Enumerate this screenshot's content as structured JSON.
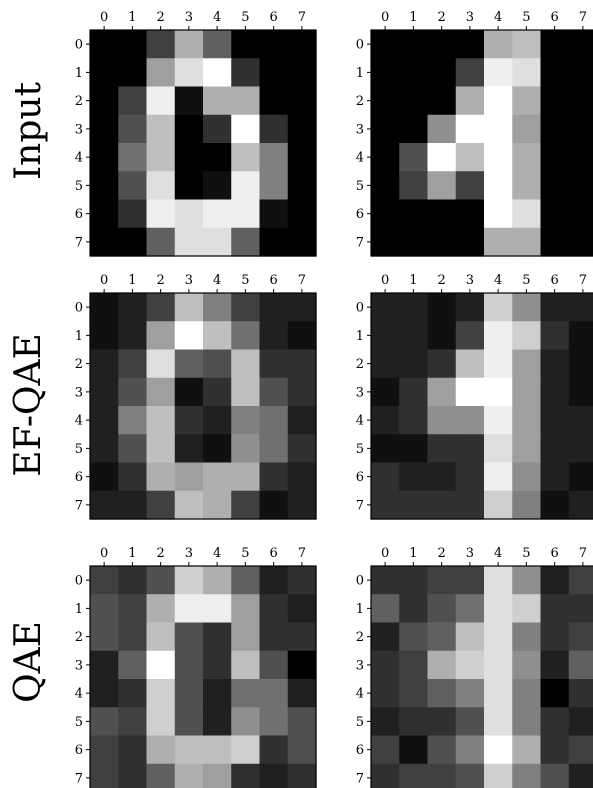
{
  "chart_data": {
    "type": "heatmap",
    "colormap": "grayscale",
    "value_range": [
      0,
      16
    ],
    "tick_labels": [
      "0",
      "1",
      "2",
      "3",
      "4",
      "5",
      "6",
      "7"
    ],
    "row_labels": [
      "Input",
      "EF-QAE",
      "QAE"
    ],
    "panels": [
      {
        "row": "Input",
        "column": 0,
        "values": [
          [
            0,
            0,
            4,
            11,
            6,
            0,
            0,
            0
          ],
          [
            0,
            0,
            10,
            14,
            16,
            3,
            0,
            0
          ],
          [
            0,
            4,
            15,
            1,
            11,
            11,
            0,
            0
          ],
          [
            0,
            5,
            12,
            0,
            3,
            16,
            3,
            0
          ],
          [
            0,
            7,
            12,
            0,
            0,
            12,
            8,
            0
          ],
          [
            0,
            5,
            14,
            0,
            1,
            15,
            8,
            0
          ],
          [
            0,
            3,
            15,
            14,
            15,
            15,
            1,
            0
          ],
          [
            0,
            0,
            6,
            14,
            14,
            6,
            0,
            0
          ]
        ]
      },
      {
        "row": "Input",
        "column": 1,
        "values": [
          [
            0,
            0,
            0,
            0,
            11,
            12,
            0,
            0
          ],
          [
            0,
            0,
            0,
            4,
            15,
            14,
            0,
            0
          ],
          [
            0,
            0,
            0,
            11,
            16,
            11,
            0,
            0
          ],
          [
            0,
            0,
            9,
            16,
            16,
            10,
            0,
            0
          ],
          [
            0,
            5,
            16,
            12,
            16,
            11,
            0,
            0
          ],
          [
            0,
            4,
            10,
            4,
            16,
            11,
            0,
            0
          ],
          [
            0,
            0,
            0,
            0,
            16,
            14,
            0,
            0
          ],
          [
            0,
            0,
            0,
            0,
            11,
            11,
            0,
            0
          ]
        ]
      },
      {
        "row": "EF-QAE",
        "column": 0,
        "values": [
          [
            1,
            2,
            4,
            12,
            8,
            4,
            2,
            2
          ],
          [
            1,
            2,
            10,
            16,
            12,
            7,
            2,
            1
          ],
          [
            2,
            4,
            14,
            6,
            5,
            12,
            3,
            3
          ],
          [
            2,
            5,
            10,
            1,
            3,
            12,
            5,
            3
          ],
          [
            2,
            8,
            12,
            3,
            2,
            8,
            7,
            2
          ],
          [
            2,
            5,
            12,
            2,
            1,
            9,
            7,
            3
          ],
          [
            1,
            3,
            11,
            10,
            11,
            11,
            3,
            2
          ],
          [
            2,
            2,
            4,
            12,
            11,
            4,
            1,
            2
          ]
        ]
      },
      {
        "row": "EF-QAE",
        "column": 1,
        "values": [
          [
            2,
            2,
            1,
            2,
            13,
            9,
            2,
            2
          ],
          [
            2,
            2,
            1,
            4,
            15,
            13,
            3,
            1
          ],
          [
            2,
            2,
            3,
            12,
            15,
            10,
            2,
            1
          ],
          [
            1,
            3,
            10,
            16,
            16,
            10,
            2,
            1
          ],
          [
            2,
            3,
            9,
            9,
            15,
            10,
            2,
            2
          ],
          [
            1,
            1,
            3,
            3,
            14,
            10,
            2,
            2
          ],
          [
            3,
            2,
            2,
            3,
            15,
            9,
            2,
            1
          ],
          [
            3,
            3,
            3,
            3,
            13,
            8,
            1,
            2
          ]
        ]
      },
      {
        "row": "QAE",
        "column": 0,
        "values": [
          [
            4,
            3,
            5,
            13,
            11,
            6,
            2,
            3
          ],
          [
            5,
            4,
            11,
            15,
            15,
            10,
            3,
            2
          ],
          [
            5,
            4,
            12,
            5,
            3,
            10,
            3,
            3
          ],
          [
            2,
            6,
            16,
            5,
            3,
            12,
            5,
            0
          ],
          [
            2,
            3,
            13,
            5,
            2,
            7,
            7,
            2
          ],
          [
            5,
            4,
            13,
            5,
            2,
            9,
            7,
            5
          ],
          [
            4,
            3,
            11,
            12,
            12,
            13,
            3,
            5
          ],
          [
            4,
            3,
            6,
            11,
            10,
            3,
            2,
            3
          ]
        ]
      },
      {
        "row": "QAE",
        "column": 1,
        "values": [
          [
            3,
            3,
            4,
            4,
            14,
            9,
            2,
            4
          ],
          [
            6,
            3,
            5,
            7,
            14,
            13,
            3,
            3
          ],
          [
            2,
            5,
            6,
            12,
            14,
            8,
            3,
            4
          ],
          [
            3,
            4,
            11,
            13,
            14,
            9,
            2,
            6
          ],
          [
            3,
            4,
            6,
            8,
            14,
            8,
            0,
            3
          ],
          [
            2,
            3,
            3,
            5,
            14,
            8,
            3,
            2
          ],
          [
            4,
            1,
            5,
            8,
            16,
            11,
            3,
            4
          ],
          [
            3,
            4,
            4,
            5,
            13,
            8,
            5,
            2
          ]
        ]
      }
    ]
  }
}
